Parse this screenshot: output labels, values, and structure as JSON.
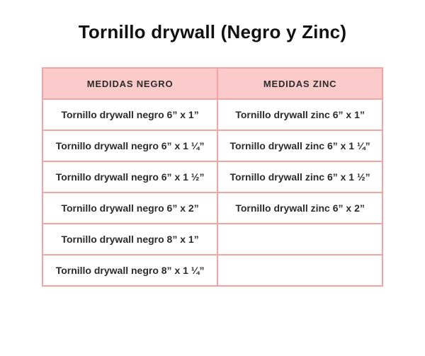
{
  "page": {
    "title": "Tornillo drywall (Negro y Zinc)"
  },
  "table": {
    "headers": [
      "MEDIDAS NEGRO",
      "MEDIDAS ZINC"
    ],
    "rows": [
      [
        "Tornillo drywall negro 6” x 1”",
        "Tornillo drywall zinc 6” x 1”"
      ],
      [
        "Tornillo drywall negro 6” x 1 ¼”",
        "Tornillo drywall zinc 6” x 1 ¼”"
      ],
      [
        "Tornillo drywall negro 6” x 1 ½”",
        "Tornillo drywall zinc 6” x 1 ½”"
      ],
      [
        "Tornillo drywall negro 6” x 2”",
        "Tornillo drywall zinc 6” x 2”"
      ],
      [
        "Tornillo drywall negro 8” x 1”",
        ""
      ],
      [
        "Tornillo drywall negro 8” x 1 ¼”",
        ""
      ]
    ]
  },
  "colors": {
    "header_background": "#FBCACA",
    "table_border": "#F2A4A4",
    "cell_text": "#2B2B2B",
    "title_text": "#111111",
    "page_background": "#FFFFFF"
  }
}
